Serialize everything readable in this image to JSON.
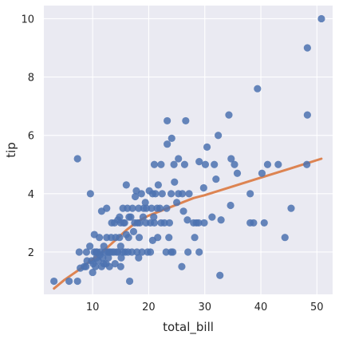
{
  "chart_data": {
    "type": "scatter",
    "xlabel": "total_bill",
    "ylabel": "tip",
    "xlim": [
      1.3,
      52.8
    ],
    "ylim": [
      0.55,
      10.45
    ],
    "xticks": [
      10,
      20,
      30,
      40,
      50
    ],
    "yticks": [
      2,
      4,
      6,
      8,
      10
    ],
    "xtick_labels": [
      "10",
      "20",
      "30",
      "40",
      "50"
    ],
    "ytick_labels": [
      "2",
      "4",
      "6",
      "8",
      "10"
    ],
    "grid": true,
    "background_color": "#EAEAF2",
    "grid_color": "#FFFFFF",
    "point_color": "#4C72B0",
    "line_color": "#DD8452",
    "series": [
      {
        "kind": "points",
        "points": [
          [
            3.1,
            1.0
          ],
          [
            5.8,
            1.0
          ],
          [
            7.3,
            1.0
          ],
          [
            7.3,
            5.2
          ],
          [
            7.6,
            2.0
          ],
          [
            7.8,
            1.45
          ],
          [
            8.5,
            1.5
          ],
          [
            8.8,
            1.5
          ],
          [
            8.9,
            2.0
          ],
          [
            9.0,
            1.7
          ],
          [
            9.5,
            2.2
          ],
          [
            9.6,
            4.0
          ],
          [
            9.8,
            1.7
          ],
          [
            10.0,
            1.3
          ],
          [
            10.1,
            1.6
          ],
          [
            10.3,
            2.0
          ],
          [
            10.3,
            2.6
          ],
          [
            10.5,
            1.5
          ],
          [
            10.6,
            2.0
          ],
          [
            10.7,
            1.8
          ],
          [
            10.8,
            2.0
          ],
          [
            11.0,
            1.7
          ],
          [
            11.2,
            2.5
          ],
          [
            11.3,
            1.9
          ],
          [
            11.4,
            2.0
          ],
          [
            11.6,
            1.5
          ],
          [
            11.6,
            3.4
          ],
          [
            11.8,
            1.8
          ],
          [
            12.0,
            2.2
          ],
          [
            12.0,
            1.6
          ],
          [
            12.2,
            2.0
          ],
          [
            12.4,
            1.6
          ],
          [
            12.5,
            2.5
          ],
          [
            12.5,
            3.5
          ],
          [
            12.7,
            2.0
          ],
          [
            12.8,
            1.8
          ],
          [
            13.0,
            2.0
          ],
          [
            13.0,
            1.5
          ],
          [
            13.1,
            2.0
          ],
          [
            13.3,
            2.5
          ],
          [
            13.4,
            3.0
          ],
          [
            13.5,
            2.0
          ],
          [
            13.8,
            2.0
          ],
          [
            13.9,
            3.0
          ],
          [
            14.0,
            1.6
          ],
          [
            14.1,
            2.5
          ],
          [
            14.3,
            2.0
          ],
          [
            14.5,
            3.1
          ],
          [
            14.5,
            2.0
          ],
          [
            14.8,
            3.2
          ],
          [
            14.8,
            2.5
          ],
          [
            15.0,
            1.5
          ],
          [
            15.0,
            3.0
          ],
          [
            15.0,
            2.2
          ],
          [
            15.1,
            1.8
          ],
          [
            15.4,
            2.0
          ],
          [
            15.4,
            3.5
          ],
          [
            15.5,
            3.0
          ],
          [
            15.7,
            3.0
          ],
          [
            15.8,
            2.0
          ],
          [
            16.0,
            2.6
          ],
          [
            16.0,
            4.3
          ],
          [
            16.2,
            3.5
          ],
          [
            16.3,
            2.0
          ],
          [
            16.4,
            2.5
          ],
          [
            16.5,
            3.2
          ],
          [
            16.6,
            1.0
          ],
          [
            16.8,
            3.2
          ],
          [
            17.0,
            2.0
          ],
          [
            17.1,
            3.5
          ],
          [
            17.3,
            2.7
          ],
          [
            17.5,
            3.0
          ],
          [
            17.6,
            3.9
          ],
          [
            17.8,
            4.1
          ],
          [
            17.9,
            2.0
          ],
          [
            18.0,
            3.0
          ],
          [
            18.2,
            1.8
          ],
          [
            18.2,
            3.5
          ],
          [
            18.3,
            2.5
          ],
          [
            18.4,
            3.0
          ],
          [
            18.7,
            4.0
          ],
          [
            18.8,
            2.0
          ],
          [
            19.0,
            3.2
          ],
          [
            19.1,
            3.5
          ],
          [
            19.4,
            3.7
          ],
          [
            19.5,
            3.0
          ],
          [
            19.6,
            3.5
          ],
          [
            19.8,
            2.0
          ],
          [
            20.1,
            4.1
          ],
          [
            20.3,
            3.0
          ],
          [
            20.3,
            2.0
          ],
          [
            20.5,
            3.5
          ],
          [
            20.7,
            4.0
          ],
          [
            20.7,
            2.4
          ],
          [
            20.9,
            3.2
          ],
          [
            21.0,
            3.0
          ],
          [
            21.0,
            5.0
          ],
          [
            21.2,
            4.0
          ],
          [
            21.5,
            3.5
          ],
          [
            21.6,
            2.5
          ],
          [
            21.7,
            4.3
          ],
          [
            22.0,
            3.5
          ],
          [
            22.2,
            3.0
          ],
          [
            22.2,
            5.0
          ],
          [
            22.4,
            4.0
          ],
          [
            22.8,
            3.0
          ],
          [
            23.1,
            2.0
          ],
          [
            23.2,
            3.5
          ],
          [
            23.3,
            6.5
          ],
          [
            23.3,
            5.7
          ],
          [
            23.6,
            2.5
          ],
          [
            23.7,
            3.0
          ],
          [
            24.0,
            4.0
          ],
          [
            24.0,
            2.0
          ],
          [
            24.1,
            5.9
          ],
          [
            24.3,
            2.0
          ],
          [
            24.5,
            5.0
          ],
          [
            24.6,
            4.4
          ],
          [
            25.0,
            3.7
          ],
          [
            25.3,
            4.0
          ],
          [
            25.3,
            5.2
          ],
          [
            25.9,
            1.5
          ],
          [
            26.0,
            4.0
          ],
          [
            26.2,
            3.4
          ],
          [
            26.4,
            5.0
          ],
          [
            26.6,
            6.5
          ],
          [
            26.9,
            3.1
          ],
          [
            27.0,
            2.0
          ],
          [
            27.2,
            4.0
          ],
          [
            28.0,
            3.0
          ],
          [
            28.2,
            2.5
          ],
          [
            28.5,
            3.0
          ],
          [
            28.9,
            3.0
          ],
          [
            29.0,
            5.1
          ],
          [
            29.0,
            2.0
          ],
          [
            29.8,
            4.2
          ],
          [
            29.9,
            3.0
          ],
          [
            30.1,
            5.0
          ],
          [
            30.4,
            5.6
          ],
          [
            31.3,
            3.2
          ],
          [
            31.7,
            5.0
          ],
          [
            32.0,
            4.5
          ],
          [
            32.4,
            6.0
          ],
          [
            32.7,
            1.2
          ],
          [
            32.9,
            3.1
          ],
          [
            34.3,
            6.7
          ],
          [
            34.6,
            3.6
          ],
          [
            34.7,
            5.2
          ],
          [
            35.3,
            5.0
          ],
          [
            35.8,
            4.7
          ],
          [
            38.1,
            4.0
          ],
          [
            38.1,
            3.0
          ],
          [
            38.7,
            3.0
          ],
          [
            39.4,
            7.6
          ],
          [
            40.2,
            4.7
          ],
          [
            40.6,
            3.0
          ],
          [
            41.2,
            5.0
          ],
          [
            43.1,
            5.0
          ],
          [
            44.3,
            2.5
          ],
          [
            45.4,
            3.5
          ],
          [
            48.2,
            5.0
          ],
          [
            48.3,
            6.7
          ],
          [
            48.3,
            9.0
          ],
          [
            50.8,
            10.0
          ]
        ]
      },
      {
        "kind": "fit-line",
        "x": [
          3.1,
          5,
          8,
          10,
          12,
          14,
          16,
          18,
          20,
          22,
          24,
          26,
          28,
          30,
          35,
          40,
          45,
          50.8
        ],
        "y": [
          0.75,
          1.05,
          1.45,
          1.75,
          2.05,
          2.4,
          2.75,
          3.05,
          3.25,
          3.4,
          3.55,
          3.7,
          3.85,
          3.95,
          4.25,
          4.55,
          4.85,
          5.2
        ]
      }
    ]
  }
}
